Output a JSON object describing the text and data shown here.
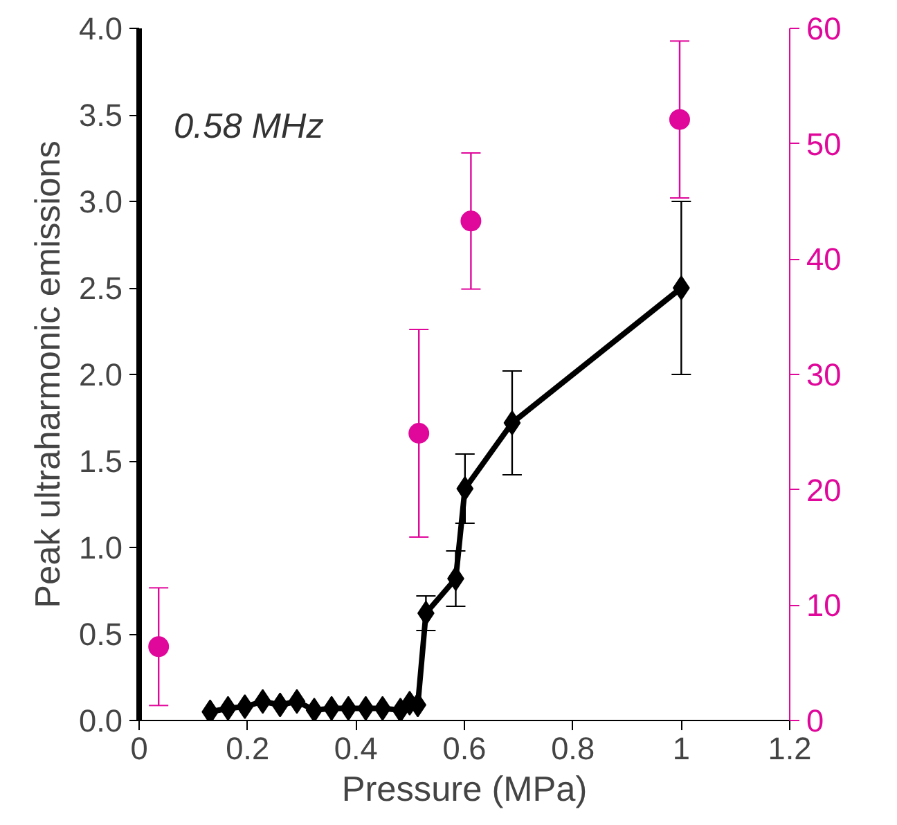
{
  "chart_data": {
    "type": "line",
    "xlabel": "Pressure (MPa)",
    "ylabel": "Peak ultraharmonic emissions",
    "annotations": [
      "0.58 MHz"
    ],
    "xlim": [
      0,
      1.2
    ],
    "xticks": [
      0,
      0.2,
      0.4,
      0.6,
      0.8,
      1,
      1.2
    ],
    "ylim": [
      0,
      4.0
    ],
    "yticks": [
      {
        "value": 0,
        "label": "0.0"
      },
      0.5,
      {
        "value": 1,
        "label": "1.0"
      },
      1.5,
      {
        "value": 2,
        "label": "2.0"
      },
      2.5,
      {
        "value": 3,
        "label": "3.0"
      },
      3.5,
      {
        "value": 4,
        "label": "4.0"
      }
    ],
    "y2lim": [
      0,
      60
    ],
    "y2ticks": [
      0,
      10,
      20,
      30,
      40,
      50,
      60
    ],
    "grid": false,
    "series": [
      {
        "color": "#000000",
        "marker": "diamond",
        "line_style": "solid",
        "x": [
          0.131,
          0.164,
          0.195,
          0.228,
          0.26,
          0.291,
          0.323,
          0.355,
          0.386,
          0.418,
          0.449,
          0.482,
          0.499,
          0.514,
          0.529,
          0.584,
          0.601,
          0.688,
          1.0
        ],
        "values": [
          0.05,
          0.07,
          0.08,
          0.11,
          0.09,
          0.11,
          0.06,
          0.07,
          0.07,
          0.07,
          0.07,
          0.06,
          0.1,
          0.09,
          0.62,
          0.82,
          1.34,
          1.72,
          2.5
        ],
        "errors": [
          null,
          null,
          null,
          null,
          null,
          null,
          null,
          null,
          null,
          null,
          null,
          null,
          null,
          null,
          0.1,
          0.16,
          0.2,
          0.3,
          0.5
        ]
      },
      {
        "type": "scatter",
        "axis": "y2",
        "color": "#e0079b",
        "marker": "circle",
        "x": [
          0.036,
          0.516,
          0.612,
          0.997
        ],
        "values": [
          6.4,
          24.9,
          43.3,
          52.1
        ],
        "errors": [
          5.1,
          9,
          5.9,
          6.8
        ]
      }
    ]
  }
}
